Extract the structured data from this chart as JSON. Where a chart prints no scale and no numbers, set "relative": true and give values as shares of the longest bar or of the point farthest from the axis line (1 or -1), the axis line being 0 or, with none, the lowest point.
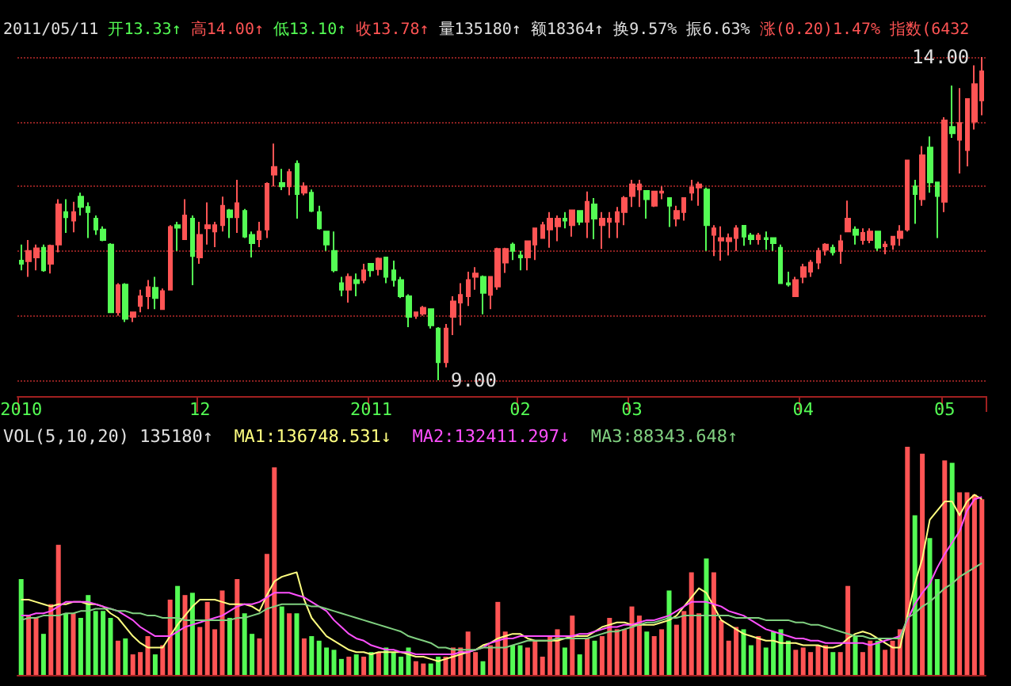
{
  "chart_data": [
    {
      "type": "candlestick",
      "title": "2011/05/11 开13.33↑ 高14.00↑ 低13.10↑ 收13.78↑ 量135180↑ 额18364↑ 换9.57% 振6.63% 涨(0.20)1.47% 指数(6432",
      "annotations": [
        "14.00",
        "9.00"
      ],
      "categories": [
        "2010",
        null,
        null,
        null,
        null,
        null,
        null,
        null,
        null,
        null,
        null,
        null,
        null,
        null,
        null,
        null,
        null,
        null,
        null,
        null,
        null,
        null,
        null,
        null,
        "12",
        null,
        null,
        null,
        null,
        null,
        null,
        null,
        null,
        null,
        null,
        null,
        null,
        null,
        null,
        null,
        null,
        null,
        null,
        null,
        null,
        null,
        null,
        "2011",
        null,
        null,
        null,
        null,
        null,
        null,
        null,
        null,
        null,
        null,
        null,
        null,
        null,
        null,
        null,
        null,
        null,
        null,
        null,
        "02",
        null,
        null,
        null,
        null,
        null,
        null,
        null,
        null,
        null,
        null,
        null,
        null,
        null,
        null,
        "03",
        null,
        null,
        null,
        null,
        null,
        null,
        null,
        null,
        null,
        null,
        null,
        null,
        null,
        null,
        null,
        null,
        null,
        null,
        null,
        null,
        null,
        null,
        "04",
        null,
        null,
        null,
        null,
        null,
        null,
        null,
        null,
        null,
        null,
        null,
        null,
        null,
        null,
        null,
        null,
        null,
        null,
        "05",
        null,
        null,
        null,
        null,
        null
      ],
      "ohlc": [
        [
          10.85,
          11.1,
          10.7,
          10.8
        ],
        [
          10.84,
          11.17,
          10.6,
          11.0
        ],
        [
          10.9,
          11.1,
          10.7,
          11.04
        ],
        [
          11.05,
          11.1,
          10.68,
          10.7
        ],
        [
          10.8,
          11.1,
          10.65,
          11.08
        ],
        [
          11.1,
          11.8,
          10.98,
          11.72
        ],
        [
          11.6,
          11.8,
          11.28,
          11.52
        ],
        [
          11.47,
          11.76,
          11.29,
          11.6
        ],
        [
          11.84,
          11.9,
          11.55,
          11.68
        ],
        [
          11.68,
          11.75,
          11.2,
          11.6
        ],
        [
          11.5,
          11.55,
          11.25,
          11.33
        ],
        [
          11.33,
          11.38,
          11.15,
          11.17
        ],
        [
          11.1,
          11.12,
          10.05,
          10.05
        ],
        [
          10.05,
          10.5,
          10.0,
          10.47
        ],
        [
          10.48,
          10.5,
          9.9,
          9.95
        ],
        [
          9.98,
          10.05,
          9.9,
          10.05
        ],
        [
          10.15,
          10.4,
          10.05,
          10.3
        ],
        [
          10.3,
          10.55,
          10.1,
          10.44
        ],
        [
          10.43,
          10.6,
          10.1,
          10.27
        ],
        [
          10.1,
          10.42,
          10.1,
          10.38
        ],
        [
          10.4,
          11.4,
          10.4,
          11.37
        ],
        [
          11.4,
          11.45,
          11.0,
          11.36
        ],
        [
          11.18,
          11.8,
          11.18,
          11.55
        ],
        [
          11.5,
          11.55,
          10.47,
          10.92
        ],
        [
          10.9,
          11.45,
          10.8,
          11.25
        ],
        [
          11.35,
          11.75,
          11.1,
          11.4
        ],
        [
          11.3,
          11.45,
          11.06,
          11.4
        ],
        [
          11.4,
          11.84,
          11.3,
          11.7
        ],
        [
          11.63,
          11.65,
          11.2,
          11.52
        ],
        [
          11.52,
          12.1,
          11.28,
          11.74
        ],
        [
          11.62,
          11.65,
          11.2,
          11.22
        ],
        [
          11.25,
          11.3,
          10.9,
          11.12
        ],
        [
          11.18,
          11.45,
          11.06,
          11.3
        ],
        [
          11.33,
          12.06,
          11.2,
          12.04
        ],
        [
          12.18,
          12.66,
          12.0,
          12.3
        ],
        [
          12.05,
          12.27,
          11.94,
          12.0
        ],
        [
          12.0,
          12.27,
          11.86,
          12.22
        ],
        [
          12.35,
          12.4,
          11.5,
          11.88
        ],
        [
          11.9,
          12.06,
          11.86,
          12.0
        ],
        [
          11.9,
          11.95,
          11.6,
          11.62
        ],
        [
          11.6,
          11.7,
          11.33,
          11.35
        ],
        [
          11.3,
          11.3,
          11.0,
          11.1
        ],
        [
          11.0,
          11.3,
          10.67,
          10.7
        ],
        [
          10.5,
          10.6,
          10.3,
          10.4
        ],
        [
          10.4,
          10.65,
          10.2,
          10.6
        ],
        [
          10.55,
          10.65,
          10.3,
          10.5
        ],
        [
          10.55,
          10.8,
          10.5,
          10.7
        ],
        [
          10.8,
          10.8,
          10.6,
          10.7
        ],
        [
          10.72,
          10.9,
          10.62,
          10.88
        ],
        [
          10.9,
          10.9,
          10.5,
          10.6
        ],
        [
          10.7,
          10.85,
          10.45,
          10.55
        ],
        [
          10.55,
          10.6,
          10.27,
          10.3
        ],
        [
          10.3,
          10.33,
          9.82,
          9.98
        ],
        [
          10.0,
          10.05,
          9.95,
          10.05
        ],
        [
          10.03,
          10.15,
          10.0,
          10.12
        ],
        [
          10.1,
          10.1,
          9.8,
          9.85
        ],
        [
          9.8,
          9.82,
          9.0,
          9.28
        ],
        [
          9.28,
          9.87,
          9.2,
          9.8
        ],
        [
          9.98,
          10.3,
          9.7,
          10.22
        ],
        [
          10.2,
          10.5,
          9.85,
          10.32
        ],
        [
          10.3,
          10.68,
          10.15,
          10.55
        ],
        [
          10.6,
          10.75,
          10.4,
          10.65
        ],
        [
          10.6,
          10.62,
          10.02,
          10.35
        ],
        [
          10.32,
          10.6,
          10.1,
          10.6
        ],
        [
          10.45,
          11.05,
          10.4,
          11.03
        ],
        [
          10.82,
          11.05,
          10.66,
          11.03
        ],
        [
          11.1,
          11.13,
          10.86,
          11.0
        ],
        [
          10.93,
          11.0,
          10.7,
          10.9
        ],
        [
          10.9,
          11.15,
          10.7,
          11.15
        ],
        [
          11.1,
          11.35,
          10.86,
          11.35
        ],
        [
          11.2,
          11.45,
          11.2,
          11.4
        ],
        [
          11.33,
          11.6,
          11.05,
          11.5
        ],
        [
          11.38,
          11.55,
          11.15,
          11.5
        ],
        [
          11.5,
          11.6,
          11.35,
          11.47
        ],
        [
          11.4,
          11.63,
          11.22,
          11.63
        ],
        [
          11.62,
          11.63,
          11.4,
          11.45
        ],
        [
          11.45,
          11.92,
          11.2,
          11.76
        ],
        [
          11.72,
          11.82,
          11.18,
          11.5
        ],
        [
          11.4,
          11.6,
          11.03,
          11.5
        ],
        [
          11.45,
          11.6,
          11.2,
          11.5
        ],
        [
          11.45,
          11.68,
          11.2,
          11.6
        ],
        [
          11.6,
          11.85,
          11.4,
          11.82
        ],
        [
          11.85,
          12.1,
          11.68,
          12.03
        ],
        [
          11.95,
          12.1,
          11.68,
          12.03
        ],
        [
          11.93,
          11.93,
          11.5,
          11.8
        ],
        [
          11.7,
          11.93,
          11.68,
          11.92
        ],
        [
          11.9,
          12.0,
          11.8,
          11.92
        ],
        [
          11.82,
          11.83,
          11.37,
          11.7
        ],
        [
          11.5,
          11.7,
          11.38,
          11.62
        ],
        [
          11.6,
          11.83,
          11.47,
          11.82
        ],
        [
          11.9,
          12.1,
          11.78,
          11.98
        ],
        [
          11.98,
          12.07,
          11.7,
          12.03
        ],
        [
          11.95,
          11.98,
          11.0,
          11.4
        ],
        [
          11.25,
          11.4,
          10.92,
          11.35
        ],
        [
          11.16,
          11.38,
          10.85,
          11.2
        ],
        [
          11.15,
          11.27,
          10.93,
          11.2
        ],
        [
          11.2,
          11.4,
          11.0,
          11.35
        ],
        [
          11.39,
          11.4,
          11.08,
          11.22
        ],
        [
          11.24,
          11.28,
          11.1,
          11.18
        ],
        [
          11.18,
          11.28,
          11.1,
          11.24
        ],
        [
          11.2,
          11.3,
          11.02,
          11.18
        ],
        [
          11.2,
          11.2,
          11.0,
          11.12
        ],
        [
          11.05,
          11.1,
          10.5,
          10.5
        ],
        [
          10.5,
          10.68,
          10.45,
          10.48
        ],
        [
          10.3,
          10.6,
          10.3,
          10.55
        ],
        [
          10.6,
          10.8,
          10.5,
          10.75
        ],
        [
          10.68,
          10.86,
          10.6,
          10.82
        ],
        [
          10.82,
          11.05,
          10.72,
          11.0
        ],
        [
          11.02,
          11.12,
          10.93,
          11.1
        ],
        [
          11.05,
          11.1,
          10.93,
          10.98
        ],
        [
          11.0,
          11.25,
          10.8,
          11.15
        ],
        [
          11.3,
          11.78,
          11.3,
          11.5
        ],
        [
          11.33,
          11.38,
          11.1,
          11.25
        ],
        [
          11.17,
          11.35,
          11.1,
          11.28
        ],
        [
          11.17,
          11.35,
          11.12,
          11.3
        ],
        [
          11.3,
          11.3,
          11.0,
          11.05
        ],
        [
          11.07,
          11.15,
          10.95,
          11.1
        ],
        [
          11.1,
          11.22,
          11.02,
          11.22
        ],
        [
          11.2,
          11.4,
          11.08,
          11.3
        ],
        [
          11.33,
          12.4,
          11.3,
          12.4
        ],
        [
          12.0,
          12.1,
          11.42,
          11.88
        ],
        [
          11.8,
          12.62,
          11.7,
          12.48
        ],
        [
          12.6,
          12.77,
          11.9,
          12.06
        ],
        [
          12.06,
          12.07,
          11.2,
          11.85
        ],
        [
          11.76,
          13.07,
          11.6,
          13.02
        ],
        [
          12.92,
          13.56,
          12.75,
          12.82
        ],
        [
          12.72,
          13.52,
          12.2,
          12.98
        ],
        [
          12.56,
          13.35,
          12.31,
          13.35
        ],
        [
          13.0,
          13.87,
          12.88,
          13.58
        ],
        [
          13.33,
          14.0,
          13.1,
          13.78
        ]
      ],
      "colors": [
        "#54fc54",
        "#ff5454",
        "#ff5454",
        "#54fc54",
        "#ff5454",
        "#ff5454",
        "#54fc54",
        "#ff5454",
        "#54fc54",
        "#54fc54",
        "#54fc54",
        "#54fc54",
        "#54fc54",
        "#ff5454",
        "#54fc54",
        "#ff5454",
        "#ff5454",
        "#ff5454",
        "#54fc54",
        "#ff5454",
        "#ff5454",
        "#54fc54",
        "#ff5454",
        "#54fc54",
        "#ff5454",
        "#ff5454",
        "#ff5454",
        "#ff5454",
        "#54fc54",
        "#ff5454",
        "#54fc54",
        "#54fc54",
        "#ff5454",
        "#ff5454",
        "#ff5454",
        "#54fc54",
        "#ff5454",
        "#54fc54",
        "#ff5454",
        "#54fc54",
        "#54fc54",
        "#54fc54",
        "#54fc54",
        "#54fc54",
        "#ff5454",
        "#54fc54",
        "#ff5454",
        "#54fc54",
        "#ff5454",
        "#54fc54",
        "#54fc54",
        "#54fc54",
        "#54fc54",
        "#ff5454",
        "#ff5454",
        "#54fc54",
        "#54fc54",
        "#ff5454",
        "#ff5454",
        "#ff5454",
        "#ff5454",
        "#ff5454",
        "#54fc54",
        "#ff5454",
        "#ff5454",
        "#ff5454",
        "#54fc54",
        "#54fc54",
        "#ff5454",
        "#ff5454",
        "#ff5454",
        "#ff5454",
        "#ff5454",
        "#54fc54",
        "#ff5454",
        "#54fc54",
        "#ff5454",
        "#54fc54",
        "#ff5454",
        "#ff5454",
        "#ff5454",
        "#ff5454",
        "#ff5454",
        "#ff5454",
        "#54fc54",
        "#ff5454",
        "#ff5454",
        "#54fc54",
        "#ff5454",
        "#ff5454",
        "#ff5454",
        "#ff5454",
        "#54fc54",
        "#ff5454",
        "#ff5454",
        "#ff5454",
        "#ff5454",
        "#54fc54",
        "#54fc54",
        "#ff5454",
        "#54fc54",
        "#54fc54",
        "#54fc54",
        "#54fc54",
        "#ff5454",
        "#ff5454",
        "#ff5454",
        "#ff5454",
        "#ff5454",
        "#54fc54",
        "#ff5454",
        "#ff5454",
        "#54fc54",
        "#ff5454",
        "#ff5454",
        "#54fc54",
        "#ff5454",
        "#ff5454",
        "#ff5454",
        "#ff5454",
        "#54fc54",
        "#ff5454",
        "#54fc54",
        "#54fc54",
        "#ff5454",
        "#54fc54",
        "#ff5454",
        "#ff5454",
        "#ff5454",
        "#ff5454"
      ],
      "yticks": [
        {
          "value": 9,
          "label": null
        },
        {
          "value": 10,
          "label": null
        },
        {
          "value": 11,
          "label": null
        },
        {
          "value": 12,
          "label": null
        },
        {
          "value": 13,
          "label": null
        },
        {
          "value": 14,
          "label": null
        }
      ],
      "grid": "y",
      "tick_labels": "x"
    },
    {
      "type": "bar",
      "title": "VOL(5,10,20) 135180↑",
      "relative": true,
      "tick_labels": false,
      "categories": [
        null,
        null,
        null,
        null,
        null,
        null,
        null,
        null,
        null,
        null,
        null,
        null,
        null,
        null,
        null,
        null,
        null,
        null,
        null,
        null,
        null,
        null,
        null,
        null,
        null,
        null,
        null,
        null,
        null,
        null,
        null,
        null,
        null,
        null,
        null,
        null,
        null,
        null,
        null,
        null,
        null,
        null,
        null,
        null,
        null,
        null,
        null,
        null,
        null,
        null,
        null,
        null,
        null,
        null,
        null,
        null,
        null,
        null,
        null,
        null,
        null,
        null,
        null,
        null,
        null,
        null,
        null,
        null,
        null,
        null,
        null,
        null,
        null,
        null,
        null,
        null,
        null,
        null,
        null,
        null,
        null,
        null,
        null,
        null,
        null,
        null,
        null,
        null,
        null,
        null,
        null,
        null,
        null,
        null,
        null,
        null,
        null,
        null,
        null,
        null,
        null,
        null,
        null,
        null,
        null,
        null,
        null,
        null,
        null,
        null,
        null,
        null,
        null,
        null,
        null,
        null,
        null,
        null,
        null,
        null,
        null,
        null,
        null,
        null,
        null,
        null,
        null,
        null,
        null,
        null
      ],
      "series": [
        {
          "values": [
            0.42,
            0.26,
            0.25,
            0.18,
            0.31,
            0.57,
            0.27,
            0.27,
            0.25,
            0.35,
            0.28,
            0.28,
            0.25,
            0.15,
            0.16,
            0.09,
            0.1,
            0.17,
            0.09,
            0.13,
            0.33,
            0.39,
            0.35,
            0.36,
            0.21,
            0.32,
            0.2,
            0.37,
            0.25,
            0.42,
            0.27,
            0.18,
            0.16,
            0.53,
            0.91,
            0.3,
            0.27,
            0.27,
            0.16,
            0.17,
            0.15,
            0.12,
            0.11,
            0.07,
            0.08,
            0.09,
            0.08,
            0.1,
            0.1,
            0.12,
            0.1,
            0.08,
            0.12,
            0.06,
            0.05,
            0.05,
            0.08,
            0.08,
            0.12,
            0.12,
            0.19,
            0.1,
            0.06,
            0.13,
            0.32,
            0.19,
            0.13,
            0.13,
            0.12,
            0.15,
            0.08,
            0.17,
            0.2,
            0.12,
            0.26,
            0.09,
            0.16,
            0.15,
            0.17,
            0.25,
            0.2,
            0.2,
            0.3,
            0.26,
            0.19,
            0.17,
            0.2,
            0.37,
            0.22,
            0.28,
            0.45,
            0.27,
            0.51,
            0.45,
            0.24,
            0.15,
            0.21,
            0.2,
            0.13,
            0.17,
            0.12,
            0.19,
            0.2,
            0.15,
            0.11,
            0.12,
            0.1,
            0.13,
            0.13,
            0.1,
            0.1,
            0.39,
            0.17,
            0.1,
            0.15,
            0.15,
            0.11,
            0.15,
            0.2,
            1.0,
            0.7,
            0.97,
            0.6,
            0.42,
            0.94,
            0.93,
            0.8,
            0.8,
            0.79,
            0.77
          ],
          "colors": [
            "#54fc54",
            "#ff5454",
            "#ff5454",
            "#54fc54",
            "#ff5454",
            "#ff5454",
            "#54fc54",
            "#ff5454",
            "#54fc54",
            "#54fc54",
            "#54fc54",
            "#54fc54",
            "#54fc54",
            "#ff5454",
            "#54fc54",
            "#ff5454",
            "#ff5454",
            "#ff5454",
            "#54fc54",
            "#ff5454",
            "#ff5454",
            "#54fc54",
            "#ff5454",
            "#54fc54",
            "#ff5454",
            "#ff5454",
            "#ff5454",
            "#ff5454",
            "#54fc54",
            "#ff5454",
            "#54fc54",
            "#54fc54",
            "#ff5454",
            "#ff5454",
            "#ff5454",
            "#54fc54",
            "#ff5454",
            "#54fc54",
            "#ff5454",
            "#54fc54",
            "#54fc54",
            "#54fc54",
            "#54fc54",
            "#54fc54",
            "#ff5454",
            "#54fc54",
            "#ff5454",
            "#54fc54",
            "#ff5454",
            "#54fc54",
            "#54fc54",
            "#54fc54",
            "#54fc54",
            "#ff5454",
            "#ff5454",
            "#54fc54",
            "#54fc54",
            "#ff5454",
            "#ff5454",
            "#ff5454",
            "#ff5454",
            "#ff5454",
            "#54fc54",
            "#ff5454",
            "#ff5454",
            "#ff5454",
            "#54fc54",
            "#54fc54",
            "#ff5454",
            "#ff5454",
            "#ff5454",
            "#ff5454",
            "#ff5454",
            "#54fc54",
            "#ff5454",
            "#54fc54",
            "#ff5454",
            "#54fc54",
            "#ff5454",
            "#ff5454",
            "#ff5454",
            "#ff5454",
            "#ff5454",
            "#ff5454",
            "#54fc54",
            "#ff5454",
            "#ff5454",
            "#54fc54",
            "#ff5454",
            "#ff5454",
            "#ff5454",
            "#ff5454",
            "#54fc54",
            "#ff5454",
            "#ff5454",
            "#ff5454",
            "#ff5454",
            "#54fc54",
            "#54fc54",
            "#ff5454",
            "#54fc54",
            "#54fc54",
            "#54fc54",
            "#54fc54",
            "#ff5454",
            "#ff5454",
            "#ff5454",
            "#ff5454",
            "#ff5454",
            "#54fc54",
            "#ff5454",
            "#ff5454",
            "#54fc54",
            "#ff5454",
            "#ff5454",
            "#54fc54",
            "#ff5454",
            "#ff5454",
            "#ff5454",
            "#ff5454",
            "#54fc54",
            "#ff5454",
            "#54fc54",
            "#54fc54",
            "#ff5454",
            "#54fc54",
            "#ff5454",
            "#ff5454",
            "#ff5454",
            "#ff5454"
          ]
        },
        {
          "type": "line",
          "name": "MA1:136748.531↓",
          "color": "#ffff80",
          "values": [
            0.33,
            0.33,
            0.32,
            0.31,
            0.3,
            0.31,
            0.31,
            0.32,
            0.32,
            0.31,
            0.31,
            0.3,
            0.27,
            0.25,
            0.21,
            0.17,
            0.14,
            0.12,
            0.12,
            0.12,
            0.17,
            0.22,
            0.26,
            0.3,
            0.33,
            0.33,
            0.33,
            0.32,
            0.31,
            0.31,
            0.31,
            0.3,
            0.28,
            0.35,
            0.41,
            0.43,
            0.44,
            0.45,
            0.33,
            0.25,
            0.21,
            0.17,
            0.15,
            0.13,
            0.11,
            0.1,
            0.1,
            0.09,
            0.1,
            0.1,
            0.1,
            0.1,
            0.09,
            0.08,
            0.08,
            0.07,
            0.06,
            0.07,
            0.08,
            0.09,
            0.1,
            0.11,
            0.13,
            0.14,
            0.16,
            0.17,
            0.18,
            0.18,
            0.16,
            0.15,
            0.15,
            0.15,
            0.15,
            0.16,
            0.17,
            0.17,
            0.17,
            0.19,
            0.21,
            0.22,
            0.23,
            0.23,
            0.22,
            0.22,
            0.22,
            0.22,
            0.23,
            0.24,
            0.26,
            0.3,
            0.34,
            0.38,
            0.36,
            0.3,
            0.24,
            0.22,
            0.2,
            0.18,
            0.17,
            0.16,
            0.15,
            0.15,
            0.14,
            0.14,
            0.14,
            0.13,
            0.13,
            0.13,
            0.12,
            0.12,
            0.13,
            0.16,
            0.18,
            0.19,
            0.18,
            0.16,
            0.14,
            0.12,
            0.12,
            0.26,
            0.4,
            0.51,
            0.68,
            0.72,
            0.76,
            0.76,
            0.7,
            0.76,
            0.79,
            0.77
          ]
        },
        {
          "type": "line",
          "name": "MA2:132411.297↓",
          "color": "#ff50ff",
          "values": [
            0.26,
            0.26,
            0.27,
            0.27,
            0.28,
            0.3,
            0.32,
            0.32,
            0.32,
            0.32,
            0.31,
            0.3,
            0.29,
            0.28,
            0.26,
            0.24,
            0.21,
            0.19,
            0.17,
            0.17,
            0.17,
            0.19,
            0.21,
            0.22,
            0.23,
            0.24,
            0.25,
            0.26,
            0.28,
            0.3,
            0.31,
            0.31,
            0.32,
            0.34,
            0.36,
            0.36,
            0.36,
            0.35,
            0.34,
            0.32,
            0.3,
            0.28,
            0.24,
            0.21,
            0.18,
            0.16,
            0.15,
            0.13,
            0.12,
            0.11,
            0.11,
            0.1,
            0.1,
            0.09,
            0.09,
            0.09,
            0.09,
            0.09,
            0.09,
            0.1,
            0.1,
            0.11,
            0.12,
            0.14,
            0.15,
            0.16,
            0.16,
            0.17,
            0.17,
            0.17,
            0.17,
            0.17,
            0.17,
            0.17,
            0.17,
            0.18,
            0.18,
            0.19,
            0.2,
            0.21,
            0.21,
            0.22,
            0.22,
            0.23,
            0.24,
            0.24,
            0.25,
            0.26,
            0.28,
            0.3,
            0.32,
            0.32,
            0.32,
            0.31,
            0.3,
            0.28,
            0.27,
            0.26,
            0.24,
            0.22,
            0.2,
            0.19,
            0.18,
            0.17,
            0.16,
            0.16,
            0.15,
            0.15,
            0.14,
            0.14,
            0.14,
            0.14,
            0.14,
            0.14,
            0.13,
            0.14,
            0.15,
            0.16,
            0.17,
            0.24,
            0.31,
            0.36,
            0.4,
            0.47,
            0.53,
            0.58,
            0.63,
            0.72,
            0.77,
            0.78
          ]
        },
        {
          "type": "line",
          "name": "MA3:88343.648↑",
          "color": "#80d080",
          "values": [
            0.24,
            0.25,
            0.25,
            0.26,
            0.26,
            0.26,
            0.27,
            0.27,
            0.28,
            0.28,
            0.29,
            0.29,
            0.29,
            0.28,
            0.28,
            0.27,
            0.27,
            0.26,
            0.26,
            0.25,
            0.25,
            0.25,
            0.24,
            0.24,
            0.24,
            0.24,
            0.24,
            0.24,
            0.24,
            0.25,
            0.25,
            0.26,
            0.27,
            0.29,
            0.3,
            0.31,
            0.31,
            0.31,
            0.31,
            0.3,
            0.3,
            0.29,
            0.28,
            0.27,
            0.26,
            0.25,
            0.24,
            0.23,
            0.22,
            0.21,
            0.2,
            0.19,
            0.17,
            0.16,
            0.15,
            0.14,
            0.12,
            0.12,
            0.11,
            0.11,
            0.11,
            0.11,
            0.12,
            0.12,
            0.12,
            0.12,
            0.13,
            0.14,
            0.15,
            0.15,
            0.15,
            0.15,
            0.16,
            0.16,
            0.16,
            0.16,
            0.16,
            0.17,
            0.18,
            0.19,
            0.19,
            0.2,
            0.21,
            0.22,
            0.23,
            0.23,
            0.24,
            0.25,
            0.25,
            0.26,
            0.26,
            0.26,
            0.26,
            0.26,
            0.26,
            0.26,
            0.25,
            0.25,
            0.25,
            0.25,
            0.24,
            0.24,
            0.24,
            0.24,
            0.23,
            0.23,
            0.22,
            0.22,
            0.21,
            0.2,
            0.19,
            0.18,
            0.17,
            0.17,
            0.16,
            0.16,
            0.16,
            0.16,
            0.16,
            0.25,
            0.27,
            0.3,
            0.32,
            0.35,
            0.38,
            0.4,
            0.43,
            0.45,
            0.47,
            0.49
          ]
        }
      ]
    }
  ]
}
